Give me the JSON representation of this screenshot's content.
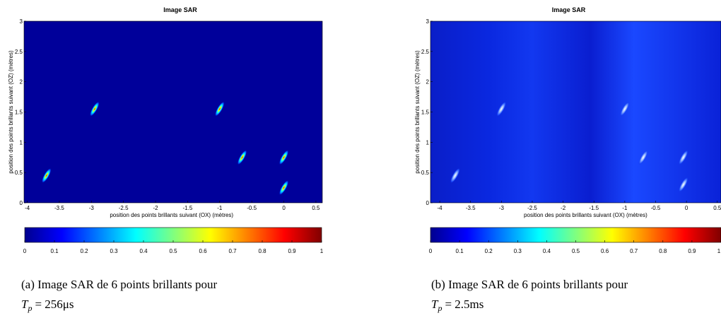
{
  "chart_data": [
    {
      "type": "heatmap",
      "title": "Image SAR",
      "xlabel": "position des points brillants suivant (OX) (mètres)",
      "ylabel": "position des points brillants suivant (OZ) (mètres)",
      "xlim": [
        -4.05,
        0.6
      ],
      "xticks": [
        -4,
        -3.5,
        -3,
        -2.5,
        -2,
        -1.5,
        -1,
        -0.5,
        0,
        0.5
      ],
      "ylim": [
        0,
        3
      ],
      "yticks": [
        0,
        0.5,
        1,
        1.5,
        2,
        2.5,
        3
      ],
      "colormap": "jet",
      "clim": [
        0,
        1
      ],
      "cticks": [
        0,
        0.1,
        0.2,
        0.3,
        0.4,
        0.5,
        0.6,
        0.7,
        0.8,
        0.9,
        1
      ],
      "x": [
        -3.7,
        -2.95,
        -1.0,
        -0.65,
        0.0,
        0.0
      ],
      "values": [
        0.45,
        1.55,
        1.55,
        0.75,
        0.75,
        0.25
      ],
      "caption": "(a) Image SAR de 6 points brillants pour",
      "caption_var": "T",
      "caption_sub": "p",
      "caption_rest": "= 256μs"
    },
    {
      "type": "heatmap",
      "title": "Image SAR",
      "xlabel": "position des points brillants suivant (OX) (mètres)",
      "ylabel": "position des points brillants suivant (OZ) (mètres)",
      "xlim": [
        -4.15,
        0.56
      ],
      "xticks": [
        -4,
        -3.5,
        -3,
        -2.5,
        -2,
        -1.5,
        -1,
        -0.5,
        0,
        0.5
      ],
      "ylim": [
        0,
        3
      ],
      "yticks": [
        0,
        0.5,
        1,
        1.5,
        2,
        2.5,
        3
      ],
      "colormap": "jet",
      "clim": [
        0,
        1
      ],
      "cticks": [
        0,
        0.1,
        0.2,
        0.3,
        0.4,
        0.5,
        0.6,
        0.7,
        0.8,
        0.9,
        1
      ],
      "x": [
        -3.75,
        -3.0,
        -1.0,
        -0.7,
        -0.05,
        -0.05
      ],
      "values": [
        0.45,
        1.55,
        1.55,
        0.75,
        0.75,
        0.3
      ],
      "caption": "(b) Image SAR de 6 points brillants pour",
      "caption_var": "T",
      "caption_sub": "p",
      "caption_rest": "= 2.5ms"
    }
  ]
}
